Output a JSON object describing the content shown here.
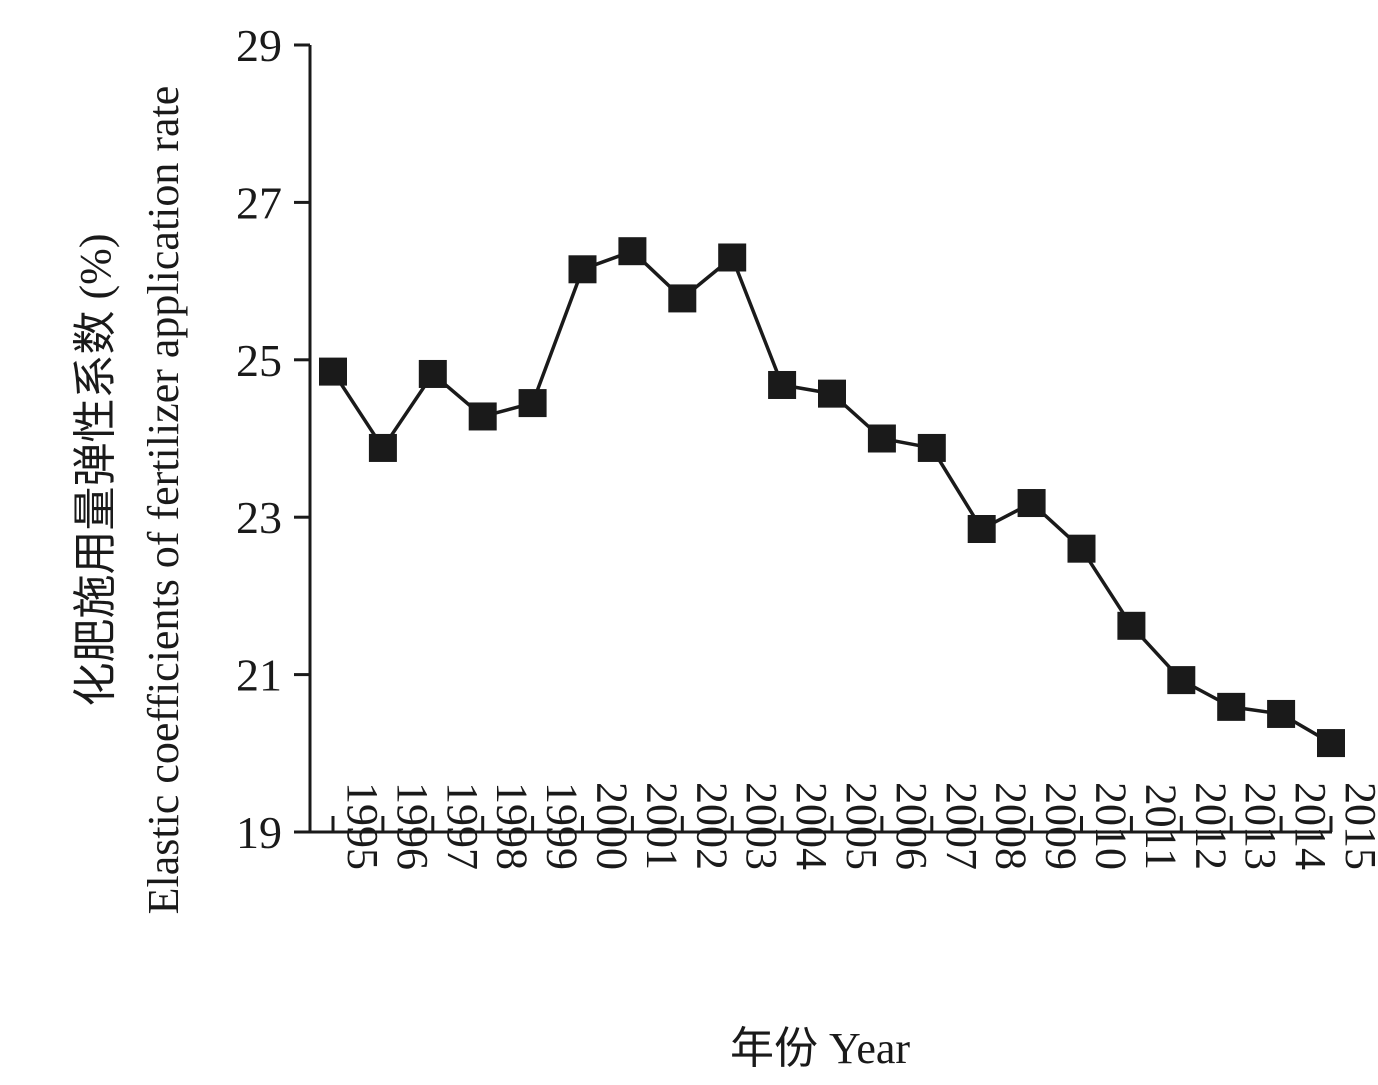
{
  "chart_data": {
    "type": "line",
    "title": "",
    "xlabel": "年份 Year",
    "ylabel_line1": "化肥施用量弹性系数 (%)",
    "ylabel_line2": "Elastic coefficients of fertilizer application rate",
    "ylim": [
      19,
      29
    ],
    "yticks": [
      19,
      21,
      23,
      25,
      27,
      29
    ],
    "categories": [
      "1995",
      "1996",
      "1997",
      "1998",
      "1999",
      "2000",
      "2001",
      "2002",
      "2003",
      "2004",
      "2005",
      "2006",
      "2007",
      "2008",
      "2009",
      "2010",
      "2011",
      "2012",
      "2013",
      "2014",
      "2015"
    ],
    "series": [
      {
        "values": [
          24.85,
          23.88,
          24.82,
          24.28,
          24.45,
          26.15,
          26.38,
          25.78,
          26.3,
          24.68,
          24.57,
          24.0,
          23.88,
          22.85,
          23.18,
          22.6,
          21.62,
          20.93,
          20.59,
          20.5,
          20.13
        ],
        "color": "#1a1a1a",
        "marker": "square"
      }
    ],
    "grid": false,
    "legend": "none"
  }
}
